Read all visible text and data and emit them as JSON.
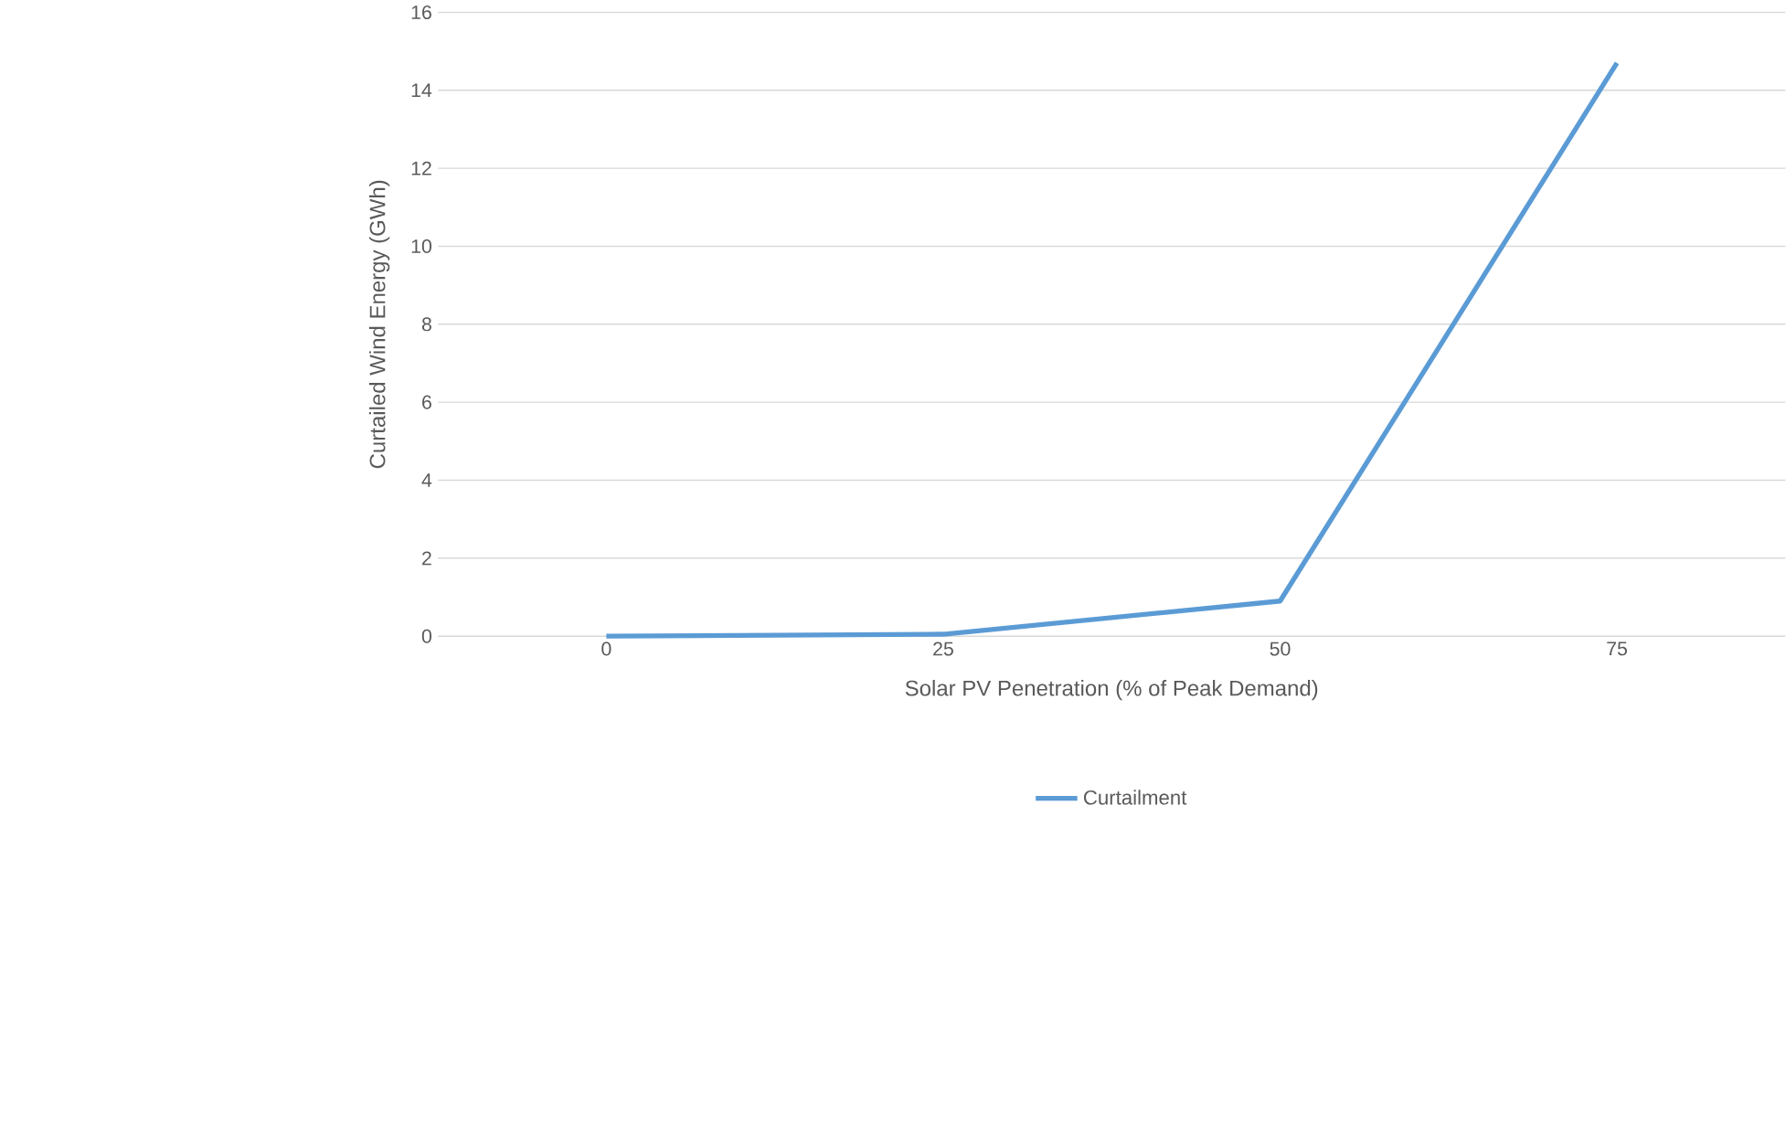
{
  "chart_data": {
    "type": "line",
    "xlabel": "Solar PV Penetration (% of Peak Demand)",
    "ylabel": "Curtailed Wind Energy (GWh)",
    "categories": [
      "0",
      "25",
      "50",
      "75"
    ],
    "series": [
      {
        "name": "Curtailment",
        "color": "#5b9bd5",
        "values": [
          0,
          0.05,
          0.9,
          14.7
        ]
      }
    ],
    "ylim": [
      0,
      16
    ],
    "yticks": [
      0,
      2,
      4,
      6,
      8,
      10,
      12,
      14,
      16
    ],
    "grid": "y",
    "legend": "bottom",
    "marker": "none",
    "line_style": "solid"
  }
}
